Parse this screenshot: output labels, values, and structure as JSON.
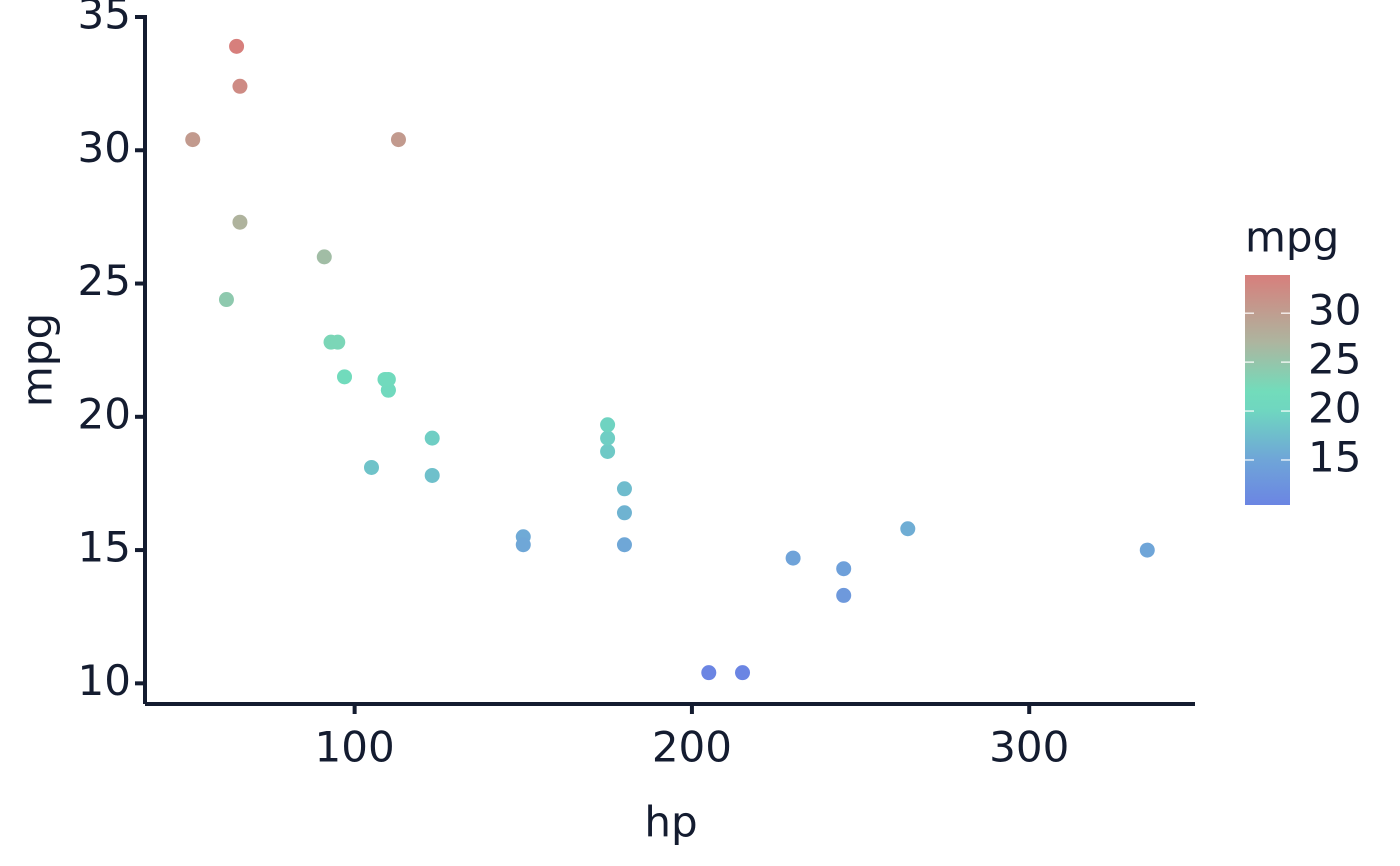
{
  "chart_data": {
    "type": "scatter",
    "x_label": "hp",
    "y_label": "mpg",
    "x": [
      110,
      110,
      93,
      110,
      175,
      105,
      245,
      62,
      95,
      123,
      123,
      180,
      180,
      180,
      205,
      215,
      230,
      66,
      52,
      65,
      97,
      150,
      150,
      245,
      175,
      66,
      91,
      113,
      264,
      175,
      335,
      109
    ],
    "values": [
      21.0,
      21.0,
      22.8,
      21.4,
      18.7,
      18.1,
      14.3,
      24.4,
      22.8,
      19.2,
      17.8,
      16.4,
      17.3,
      15.2,
      10.4,
      10.4,
      14.7,
      32.4,
      30.4,
      33.9,
      21.5,
      15.5,
      15.2,
      13.3,
      19.2,
      27.3,
      26.0,
      30.4,
      15.8,
      19.7,
      15.0,
      21.4
    ],
    "xlim": [
      37.85,
      349.15
    ],
    "ylim": [
      9.225,
      35.075
    ],
    "xticks": [
      100,
      200,
      300
    ],
    "yticks": [
      10,
      15,
      20,
      25,
      30,
      35
    ],
    "legend": {
      "title": "mpg",
      "ticks": [
        15,
        20,
        25,
        30
      ],
      "limits": [
        10.4,
        33.9
      ],
      "position": "right"
    },
    "colorscale": [
      [
        10.4,
        "#6b85e3"
      ],
      [
        15,
        "#6fa5d8"
      ],
      [
        20,
        "#6fd6c0"
      ],
      [
        22,
        "#72dcbb"
      ],
      [
        27,
        "#adb59f"
      ],
      [
        33.9,
        "#d77f7c"
      ]
    ]
  }
}
